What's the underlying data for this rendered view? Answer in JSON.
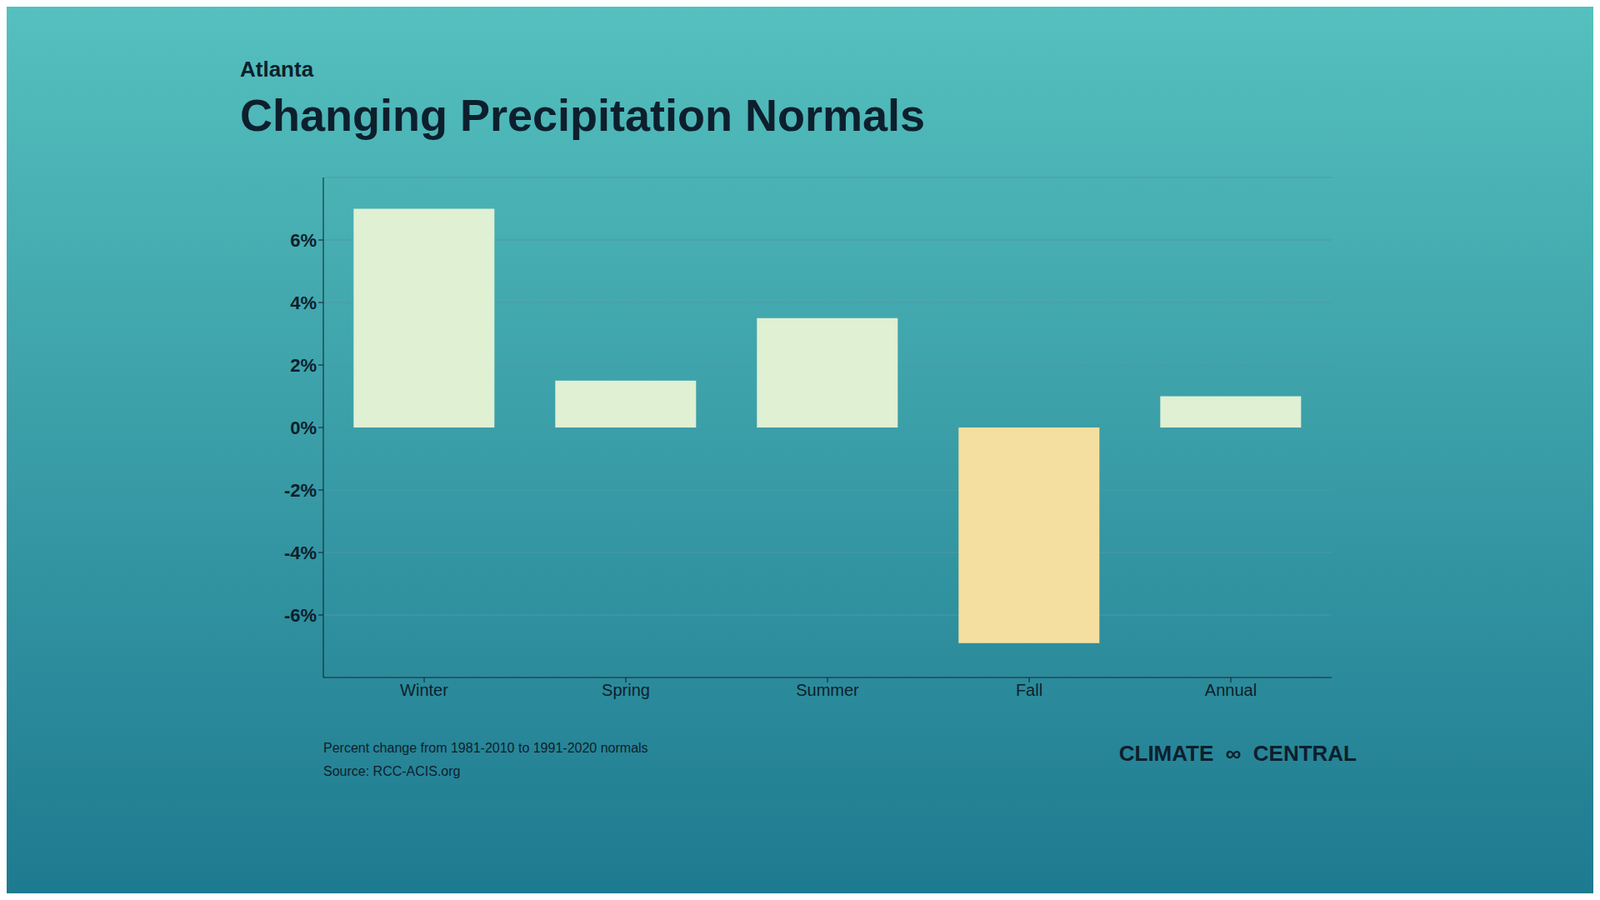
{
  "chart_data": {
    "type": "bar",
    "title": "Changing Precipitation Normals",
    "subtitle": "Atlanta",
    "categories": [
      "Winter",
      "Spring",
      "Summer",
      "Fall",
      "Annual"
    ],
    "values": [
      7.0,
      1.5,
      3.5,
      -6.9,
      1.0
    ],
    "colors": [
      "#dff0d3",
      "#dff0d3",
      "#dff0d3",
      "#f5dfa0",
      "#dff0d3"
    ],
    "ylim": [
      -8,
      8
    ],
    "yticks": [
      {
        "value": -6,
        "label": "-6%"
      },
      {
        "value": -4,
        "label": "-4%"
      },
      {
        "value": -2,
        "label": "-2%"
      },
      {
        "value": 0,
        "label": "0%"
      },
      {
        "value": 2,
        "label": "2%"
      },
      {
        "value": 4,
        "label": "4%"
      },
      {
        "value": 6,
        "label": "6%"
      }
    ],
    "grid": true,
    "annotations": [
      "Percent change from 1981-2010 to 1991-2020 normals",
      "Source: RCC-ACIS.org",
      "CLIMATE  ∞  CENTRAL"
    ]
  }
}
